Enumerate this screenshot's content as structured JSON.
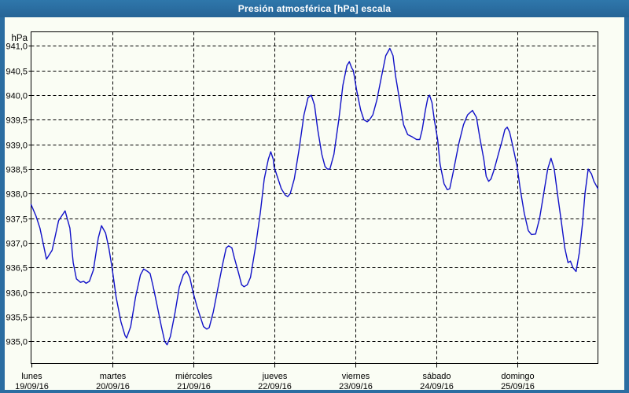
{
  "window": {
    "title": "Presión atmosférica [hPa] escala",
    "title_bar_color": "#2b6da1",
    "frame_color": "#2b6da1",
    "content_bg": "#fafdf4"
  },
  "chart_data": {
    "type": "line",
    "title": "Presión atmosférica [hPa] escala",
    "xlabel": "",
    "ylabel": "hPa",
    "y_unit_label": "hPa",
    "line_color": "#1111c8",
    "grid": "dashed-black",
    "legend": "none",
    "ylim": [
      934.55,
      941.3
    ],
    "x_axis_span_days": 7,
    "yticks": [
      {
        "value": 941.0,
        "label": "941,0"
      },
      {
        "value": 940.5,
        "label": "940,5"
      },
      {
        "value": 940.0,
        "label": "940,0"
      },
      {
        "value": 939.5,
        "label": "939,5"
      },
      {
        "value": 939.0,
        "label": "939,0"
      },
      {
        "value": 938.5,
        "label": "938,5"
      },
      {
        "value": 938.0,
        "label": "938,0"
      },
      {
        "value": 937.5,
        "label": "937,5"
      },
      {
        "value": 937.0,
        "label": "937,0"
      },
      {
        "value": 936.5,
        "label": "936,5"
      },
      {
        "value": 936.0,
        "label": "936,0"
      },
      {
        "value": 935.5,
        "label": "935,5"
      },
      {
        "value": 935.0,
        "label": "935,0"
      }
    ],
    "xticks": [
      {
        "day_index": 0,
        "name": "lunes",
        "date": "19/09/16"
      },
      {
        "day_index": 1,
        "name": "martes",
        "date": "20/09/16"
      },
      {
        "day_index": 2,
        "name": "miércoles",
        "date": "21/09/16"
      },
      {
        "day_index": 3,
        "name": "jueves",
        "date": "22/09/16"
      },
      {
        "day_index": 4,
        "name": "viernes",
        "date": "23/09/16"
      },
      {
        "day_index": 5,
        "name": "sábado",
        "date": "24/09/16"
      },
      {
        "day_index": 6,
        "name": "domingo",
        "date": "25/09/16"
      }
    ],
    "series": [
      {
        "name": "Presión atmosférica",
        "x_unit": "days_from_monday_00h",
        "y_unit": "hPa",
        "points": [
          [
            0.0,
            937.78
          ],
          [
            0.06,
            937.55
          ],
          [
            0.11,
            937.3
          ],
          [
            0.19,
            936.67
          ],
          [
            0.26,
            936.85
          ],
          [
            0.34,
            937.45
          ],
          [
            0.42,
            937.65
          ],
          [
            0.48,
            937.3
          ],
          [
            0.52,
            936.6
          ],
          [
            0.56,
            936.27
          ],
          [
            0.61,
            936.2
          ],
          [
            0.65,
            936.22
          ],
          [
            0.68,
            936.18
          ],
          [
            0.72,
            936.22
          ],
          [
            0.77,
            936.45
          ],
          [
            0.83,
            937.1
          ],
          [
            0.87,
            937.35
          ],
          [
            0.92,
            937.2
          ],
          [
            0.96,
            936.9
          ],
          [
            1.0,
            936.5
          ],
          [
            1.05,
            935.9
          ],
          [
            1.11,
            935.4
          ],
          [
            1.16,
            935.12
          ],
          [
            1.18,
            935.07
          ],
          [
            1.23,
            935.3
          ],
          [
            1.29,
            935.9
          ],
          [
            1.35,
            936.35
          ],
          [
            1.39,
            936.47
          ],
          [
            1.44,
            936.42
          ],
          [
            1.47,
            936.38
          ],
          [
            1.51,
            936.1
          ],
          [
            1.56,
            935.7
          ],
          [
            1.61,
            935.3
          ],
          [
            1.65,
            935.0
          ],
          [
            1.68,
            934.93
          ],
          [
            1.72,
            935.1
          ],
          [
            1.78,
            935.6
          ],
          [
            1.83,
            936.1
          ],
          [
            1.88,
            936.35
          ],
          [
            1.92,
            936.43
          ],
          [
            1.96,
            936.3
          ],
          [
            2.0,
            936.0
          ],
          [
            2.05,
            935.7
          ],
          [
            2.1,
            935.45
          ],
          [
            2.13,
            935.3
          ],
          [
            2.17,
            935.25
          ],
          [
            2.2,
            935.28
          ],
          [
            2.25,
            935.6
          ],
          [
            2.31,
            936.1
          ],
          [
            2.37,
            936.6
          ],
          [
            2.41,
            936.9
          ],
          [
            2.44,
            936.94
          ],
          [
            2.48,
            936.9
          ],
          [
            2.51,
            936.7
          ],
          [
            2.56,
            936.4
          ],
          [
            2.6,
            936.15
          ],
          [
            2.63,
            936.11
          ],
          [
            2.67,
            936.15
          ],
          [
            2.71,
            936.3
          ],
          [
            2.77,
            936.9
          ],
          [
            2.83,
            937.6
          ],
          [
            2.88,
            938.3
          ],
          [
            2.93,
            938.7
          ],
          [
            2.96,
            938.85
          ],
          [
            2.99,
            938.7
          ],
          [
            3.0,
            938.55
          ],
          [
            3.04,
            938.35
          ],
          [
            3.09,
            938.1
          ],
          [
            3.14,
            937.97
          ],
          [
            3.17,
            937.94
          ],
          [
            3.2,
            938.0
          ],
          [
            3.25,
            938.3
          ],
          [
            3.31,
            938.9
          ],
          [
            3.37,
            939.6
          ],
          [
            3.42,
            939.95
          ],
          [
            3.46,
            940.0
          ],
          [
            3.5,
            939.8
          ],
          [
            3.54,
            939.3
          ],
          [
            3.59,
            938.8
          ],
          [
            3.63,
            938.55
          ],
          [
            3.66,
            938.5
          ],
          [
            3.69,
            938.5
          ],
          [
            3.74,
            938.8
          ],
          [
            3.8,
            939.5
          ],
          [
            3.85,
            940.2
          ],
          [
            3.9,
            940.6
          ],
          [
            3.93,
            940.68
          ],
          [
            3.96,
            940.55
          ],
          [
            3.98,
            940.5
          ],
          [
            4.02,
            940.1
          ],
          [
            4.07,
            939.7
          ],
          [
            4.11,
            939.5
          ],
          [
            4.15,
            939.46
          ],
          [
            4.18,
            939.5
          ],
          [
            4.22,
            939.6
          ],
          [
            4.27,
            939.9
          ],
          [
            4.33,
            940.4
          ],
          [
            4.38,
            940.8
          ],
          [
            4.43,
            940.95
          ],
          [
            4.47,
            940.8
          ],
          [
            4.5,
            940.4
          ],
          [
            4.55,
            939.9
          ],
          [
            4.6,
            939.4
          ],
          [
            4.65,
            939.2
          ],
          [
            4.71,
            939.15
          ],
          [
            4.76,
            939.1
          ],
          [
            4.8,
            939.1
          ],
          [
            4.83,
            939.3
          ],
          [
            4.87,
            939.7
          ],
          [
            4.9,
            939.95
          ],
          [
            4.92,
            940.0
          ],
          [
            4.95,
            939.85
          ],
          [
            4.98,
            939.5
          ],
          [
            5.02,
            939.1
          ],
          [
            5.05,
            938.6
          ],
          [
            5.1,
            938.2
          ],
          [
            5.14,
            938.08
          ],
          [
            5.17,
            938.1
          ],
          [
            5.22,
            938.5
          ],
          [
            5.28,
            939.0
          ],
          [
            5.34,
            939.4
          ],
          [
            5.39,
            939.6
          ],
          [
            5.45,
            939.69
          ],
          [
            5.5,
            939.55
          ],
          [
            5.54,
            939.15
          ],
          [
            5.59,
            938.7
          ],
          [
            5.62,
            938.35
          ],
          [
            5.65,
            938.25
          ],
          [
            5.68,
            938.3
          ],
          [
            5.72,
            938.5
          ],
          [
            5.77,
            938.8
          ],
          [
            5.82,
            939.1
          ],
          [
            5.85,
            939.3
          ],
          [
            5.88,
            939.35
          ],
          [
            5.91,
            939.25
          ],
          [
            5.95,
            938.95
          ],
          [
            6.0,
            938.57
          ],
          [
            6.04,
            938.1
          ],
          [
            6.09,
            937.6
          ],
          [
            6.14,
            937.25
          ],
          [
            6.18,
            937.17
          ],
          [
            6.23,
            937.18
          ],
          [
            6.28,
            937.5
          ],
          [
            6.33,
            938.0
          ],
          [
            6.38,
            938.5
          ],
          [
            6.42,
            938.72
          ],
          [
            6.46,
            938.5
          ],
          [
            6.5,
            938.0
          ],
          [
            6.55,
            937.4
          ],
          [
            6.59,
            936.9
          ],
          [
            6.63,
            936.6
          ],
          [
            6.66,
            936.63
          ],
          [
            6.69,
            936.5
          ],
          [
            6.73,
            936.42
          ],
          [
            6.77,
            936.8
          ],
          [
            6.81,
            937.4
          ],
          [
            6.84,
            938.0
          ],
          [
            6.88,
            938.5
          ],
          [
            6.92,
            938.4
          ],
          [
            6.95,
            938.25
          ],
          [
            7.0,
            938.1
          ]
        ]
      }
    ]
  }
}
